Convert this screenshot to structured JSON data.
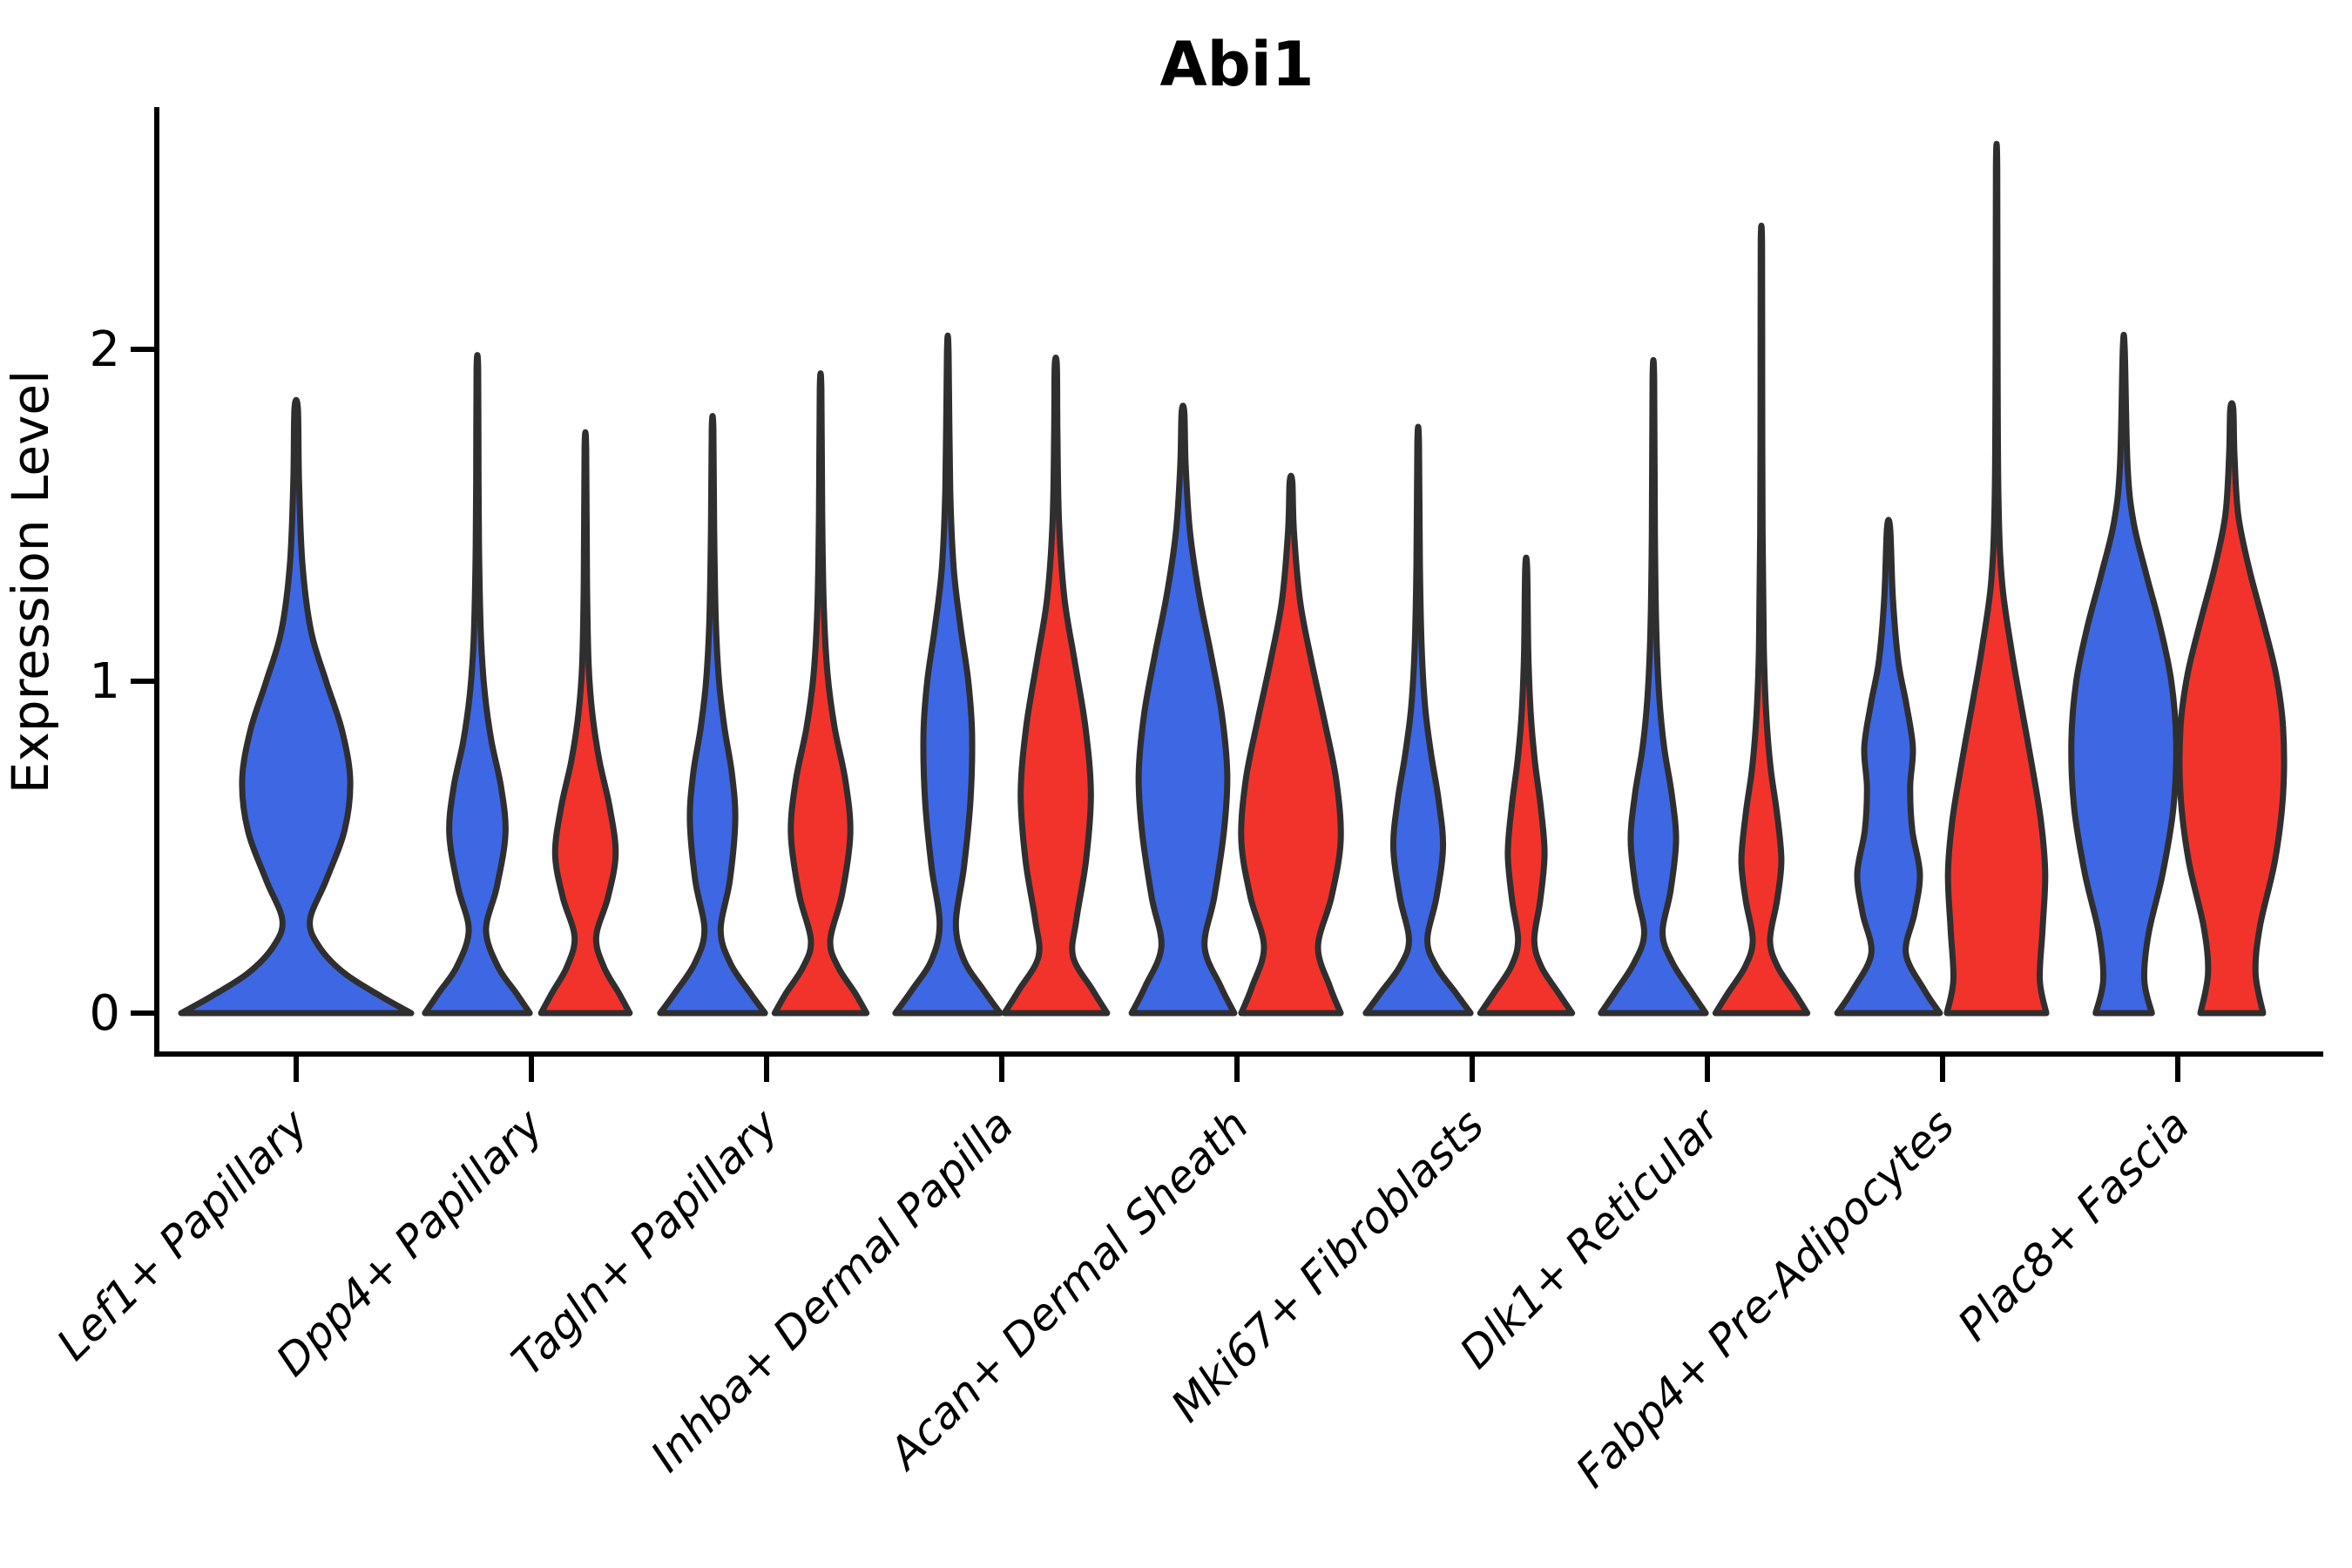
{
  "chart_data": {
    "type": "violin",
    "title": "Abi1",
    "ylabel": "Expression Level",
    "xlabel": "",
    "yticks": [
      0,
      1,
      2
    ],
    "ylim": [
      -0.12,
      2.73
    ],
    "grid": false,
    "legend": "none",
    "series_colors": {
      "blue": "#3E67E4",
      "red": "#F2332C"
    },
    "edge_color": "#2F2F2F",
    "categories": [
      "Lef1+ Papillary",
      "Dpp4+ Papillary",
      "Tagln+ Papillary",
      "Inhba+ Dermal Papilla",
      "Acan+ Dermal Sheath",
      "Mki67+ Fibroblasts",
      "Dlk1+ Reticular",
      "Fabp4+ Pre-Adipocytes",
      "Plac8+ Fascia"
    ],
    "violins": [
      {
        "category": "Lef1+ Papillary",
        "series": "blue",
        "max_expression": 1.82,
        "profile": [
          [
            0.0,
            1.0
          ],
          [
            0.05,
            0.74
          ],
          [
            0.12,
            0.42
          ],
          [
            0.2,
            0.2
          ],
          [
            0.28,
            0.12
          ],
          [
            0.4,
            0.26
          ],
          [
            0.55,
            0.42
          ],
          [
            0.7,
            0.47
          ],
          [
            0.85,
            0.4
          ],
          [
            1.0,
            0.26
          ],
          [
            1.15,
            0.13
          ],
          [
            1.35,
            0.055
          ],
          [
            1.6,
            0.025
          ],
          [
            1.82,
            0.015
          ]
        ]
      },
      {
        "category": "Dpp4+ Papillary",
        "series": "blue",
        "max_expression": 1.94,
        "profile": [
          [
            0.0,
            0.97
          ],
          [
            0.06,
            0.72
          ],
          [
            0.14,
            0.38
          ],
          [
            0.25,
            0.16
          ],
          [
            0.38,
            0.36
          ],
          [
            0.54,
            0.52
          ],
          [
            0.68,
            0.44
          ],
          [
            0.82,
            0.26
          ],
          [
            0.96,
            0.14
          ],
          [
            1.12,
            0.07
          ],
          [
            1.35,
            0.035
          ],
          [
            1.6,
            0.022
          ],
          [
            1.94,
            0.015
          ]
        ]
      },
      {
        "category": "Dpp4+ Papillary",
        "series": "red",
        "max_expression": 1.7,
        "profile": [
          [
            0.0,
            0.82
          ],
          [
            0.06,
            0.62
          ],
          [
            0.14,
            0.34
          ],
          [
            0.23,
            0.2
          ],
          [
            0.35,
            0.42
          ],
          [
            0.48,
            0.56
          ],
          [
            0.62,
            0.45
          ],
          [
            0.76,
            0.26
          ],
          [
            0.9,
            0.13
          ],
          [
            1.05,
            0.06
          ],
          [
            1.3,
            0.03
          ],
          [
            1.7,
            0.015
          ]
        ]
      },
      {
        "category": "Tagln+ Papillary",
        "series": "blue",
        "max_expression": 1.76,
        "profile": [
          [
            0.0,
            0.97
          ],
          [
            0.06,
            0.7
          ],
          [
            0.15,
            0.33
          ],
          [
            0.25,
            0.15
          ],
          [
            0.4,
            0.32
          ],
          [
            0.58,
            0.42
          ],
          [
            0.72,
            0.36
          ],
          [
            0.86,
            0.22
          ],
          [
            1.0,
            0.12
          ],
          [
            1.18,
            0.06
          ],
          [
            1.45,
            0.03
          ],
          [
            1.76,
            0.015
          ]
        ]
      },
      {
        "category": "Tagln+ Papillary",
        "series": "red",
        "max_expression": 1.88,
        "profile": [
          [
            0.0,
            0.85
          ],
          [
            0.06,
            0.64
          ],
          [
            0.14,
            0.32
          ],
          [
            0.22,
            0.18
          ],
          [
            0.36,
            0.4
          ],
          [
            0.54,
            0.55
          ],
          [
            0.7,
            0.46
          ],
          [
            0.86,
            0.26
          ],
          [
            1.02,
            0.13
          ],
          [
            1.22,
            0.06
          ],
          [
            1.5,
            0.03
          ],
          [
            1.88,
            0.015
          ]
        ]
      },
      {
        "category": "Inhba+ Dermal Papilla",
        "series": "blue",
        "max_expression": 1.99,
        "profile": [
          [
            0.0,
            0.97
          ],
          [
            0.07,
            0.66
          ],
          [
            0.16,
            0.3
          ],
          [
            0.27,
            0.15
          ],
          [
            0.44,
            0.3
          ],
          [
            0.64,
            0.42
          ],
          [
            0.84,
            0.45
          ],
          [
            1.0,
            0.38
          ],
          [
            1.16,
            0.24
          ],
          [
            1.34,
            0.11
          ],
          [
            1.58,
            0.045
          ],
          [
            1.99,
            0.015
          ]
        ]
      },
      {
        "category": "Inhba+ Dermal Papilla",
        "series": "red",
        "max_expression": 1.95,
        "profile": [
          [
            0.0,
            0.95
          ],
          [
            0.07,
            0.68
          ],
          [
            0.17,
            0.32
          ],
          [
            0.28,
            0.38
          ],
          [
            0.46,
            0.56
          ],
          [
            0.66,
            0.65
          ],
          [
            0.86,
            0.55
          ],
          [
            1.06,
            0.35
          ],
          [
            1.25,
            0.16
          ],
          [
            1.48,
            0.06
          ],
          [
            1.75,
            0.03
          ],
          [
            1.95,
            0.02
          ]
        ]
      },
      {
        "category": "Acan+ Dermal Sheath",
        "series": "blue",
        "max_expression": 1.81,
        "profile": [
          [
            0.0,
            0.95
          ],
          [
            0.08,
            0.7
          ],
          [
            0.2,
            0.4
          ],
          [
            0.35,
            0.58
          ],
          [
            0.55,
            0.76
          ],
          [
            0.72,
            0.82
          ],
          [
            0.9,
            0.72
          ],
          [
            1.08,
            0.52
          ],
          [
            1.26,
            0.3
          ],
          [
            1.45,
            0.13
          ],
          [
            1.65,
            0.05
          ],
          [
            1.81,
            0.025
          ]
        ]
      },
      {
        "category": "Acan+ Dermal Sheath",
        "series": "red",
        "max_expression": 1.6,
        "profile": [
          [
            0.0,
            0.92
          ],
          [
            0.08,
            0.72
          ],
          [
            0.2,
            0.5
          ],
          [
            0.35,
            0.75
          ],
          [
            0.52,
            0.92
          ],
          [
            0.7,
            0.84
          ],
          [
            0.88,
            0.62
          ],
          [
            1.06,
            0.38
          ],
          [
            1.24,
            0.17
          ],
          [
            1.45,
            0.055
          ],
          [
            1.6,
            0.025
          ]
        ]
      },
      {
        "category": "Mki67+ Fibroblasts",
        "series": "blue",
        "max_expression": 1.72,
        "profile": [
          [
            0.0,
            0.97
          ],
          [
            0.06,
            0.7
          ],
          [
            0.14,
            0.34
          ],
          [
            0.22,
            0.17
          ],
          [
            0.35,
            0.34
          ],
          [
            0.5,
            0.46
          ],
          [
            0.64,
            0.38
          ],
          [
            0.78,
            0.24
          ],
          [
            0.92,
            0.13
          ],
          [
            1.1,
            0.065
          ],
          [
            1.35,
            0.032
          ],
          [
            1.72,
            0.015
          ]
        ]
      },
      {
        "category": "Mki67+ Fibroblasts",
        "series": "red",
        "max_expression": 1.34,
        "profile": [
          [
            0.0,
            0.85
          ],
          [
            0.06,
            0.6
          ],
          [
            0.14,
            0.28
          ],
          [
            0.22,
            0.15
          ],
          [
            0.34,
            0.26
          ],
          [
            0.48,
            0.34
          ],
          [
            0.62,
            0.27
          ],
          [
            0.76,
            0.16
          ],
          [
            0.9,
            0.085
          ],
          [
            1.08,
            0.04
          ],
          [
            1.34,
            0.018
          ]
        ]
      },
      {
        "category": "Dlk1+ Reticular",
        "series": "blue",
        "max_expression": 1.91,
        "profile": [
          [
            0.0,
            0.97
          ],
          [
            0.06,
            0.72
          ],
          [
            0.15,
            0.36
          ],
          [
            0.24,
            0.17
          ],
          [
            0.37,
            0.32
          ],
          [
            0.52,
            0.42
          ],
          [
            0.66,
            0.34
          ],
          [
            0.8,
            0.2
          ],
          [
            0.95,
            0.11
          ],
          [
            1.15,
            0.055
          ],
          [
            1.45,
            0.028
          ],
          [
            1.91,
            0.015
          ]
        ]
      },
      {
        "category": "Dlk1+ Reticular",
        "series": "red",
        "max_expression": 2.32,
        "profile": [
          [
            0.0,
            0.85
          ],
          [
            0.06,
            0.62
          ],
          [
            0.14,
            0.3
          ],
          [
            0.22,
            0.16
          ],
          [
            0.34,
            0.29
          ],
          [
            0.46,
            0.37
          ],
          [
            0.6,
            0.29
          ],
          [
            0.74,
            0.17
          ],
          [
            0.9,
            0.09
          ],
          [
            1.1,
            0.045
          ],
          [
            1.45,
            0.022
          ],
          [
            1.9,
            0.015
          ],
          [
            2.32,
            0.012
          ]
        ]
      },
      {
        "category": "Fabp4+ Pre-Adipocytes",
        "series": "blue",
        "max_expression": 1.46,
        "profile": [
          [
            0.0,
            0.95
          ],
          [
            0.07,
            0.66
          ],
          [
            0.18,
            0.32
          ],
          [
            0.3,
            0.48
          ],
          [
            0.42,
            0.58
          ],
          [
            0.55,
            0.44
          ],
          [
            0.68,
            0.4
          ],
          [
            0.8,
            0.45
          ],
          [
            0.93,
            0.33
          ],
          [
            1.06,
            0.18
          ],
          [
            1.25,
            0.08
          ],
          [
            1.46,
            0.03
          ]
        ]
      },
      {
        "category": "Fabp4+ Pre-Adipocytes",
        "series": "red",
        "max_expression": 2.55,
        "profile": [
          [
            0.0,
            0.92
          ],
          [
            0.1,
            0.8
          ],
          [
            0.25,
            0.85
          ],
          [
            0.42,
            0.9
          ],
          [
            0.58,
            0.82
          ],
          [
            0.76,
            0.64
          ],
          [
            0.94,
            0.44
          ],
          [
            1.1,
            0.27
          ],
          [
            1.3,
            0.1
          ],
          [
            1.55,
            0.035
          ],
          [
            2.0,
            0.018
          ],
          [
            2.55,
            0.012
          ]
        ]
      },
      {
        "category": "Plac8+ Fascia",
        "series": "blue",
        "max_expression": 2.0,
        "profile": [
          [
            0.0,
            0.52
          ],
          [
            0.1,
            0.38
          ],
          [
            0.24,
            0.46
          ],
          [
            0.42,
            0.72
          ],
          [
            0.62,
            0.92
          ],
          [
            0.82,
            0.97
          ],
          [
            1.0,
            0.88
          ],
          [
            1.16,
            0.68
          ],
          [
            1.32,
            0.42
          ],
          [
            1.48,
            0.18
          ],
          [
            1.65,
            0.07
          ],
          [
            2.0,
            0.018
          ]
        ]
      },
      {
        "category": "Plac8+ Fascia",
        "series": "red",
        "max_expression": 1.82,
        "profile": [
          [
            0.0,
            0.58
          ],
          [
            0.12,
            0.44
          ],
          [
            0.26,
            0.52
          ],
          [
            0.46,
            0.8
          ],
          [
            0.66,
            0.95
          ],
          [
            0.86,
            0.95
          ],
          [
            1.02,
            0.82
          ],
          [
            1.18,
            0.58
          ],
          [
            1.34,
            0.32
          ],
          [
            1.5,
            0.12
          ],
          [
            1.68,
            0.05
          ],
          [
            1.82,
            0.028
          ]
        ]
      }
    ]
  }
}
